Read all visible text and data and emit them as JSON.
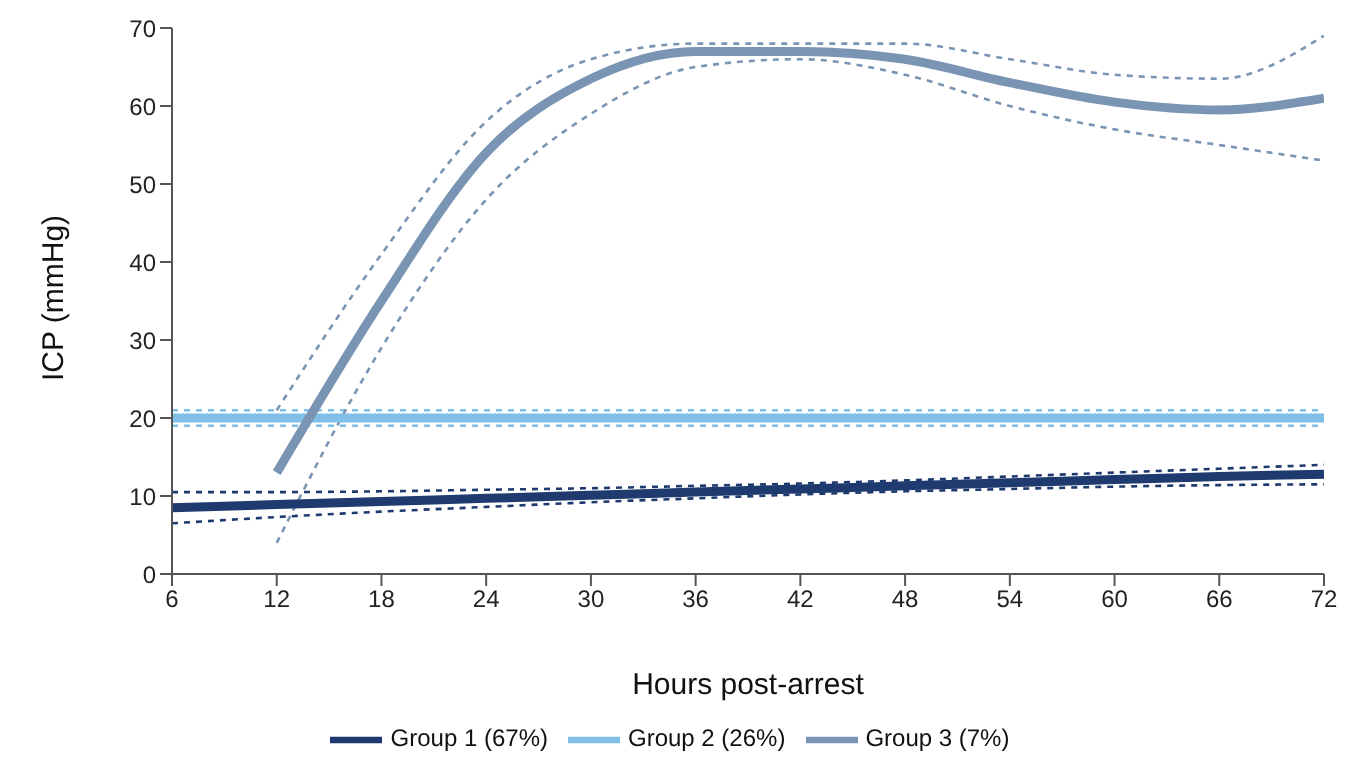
{
  "chart_data": {
    "type": "line",
    "xlabel": "Hours post-arrest",
    "ylabel": "ICP (mmHg)",
    "xlim": [
      6,
      72
    ],
    "xticks": [
      6,
      12,
      18,
      24,
      30,
      36,
      42,
      48,
      54,
      60,
      66,
      72
    ],
    "ylim": [
      0,
      70
    ],
    "yticks": [
      0,
      10,
      20,
      30,
      40,
      50,
      60,
      70
    ],
    "grid": false,
    "legend": "bottom",
    "marker": "none",
    "line_style": "solid",
    "series": [
      {
        "color": "#1f3a6e",
        "line_style": "dashed",
        "x": [
          6,
          12,
          18,
          24,
          30,
          36,
          42,
          48,
          54,
          60,
          66,
          72
        ],
        "values": [
          6.5,
          7.3,
          8,
          8.6,
          9.2,
          9.7,
          10.2,
          10.6,
          10.9,
          11.2,
          11.4,
          11.5
        ]
      },
      {
        "color": "#1f3a6e",
        "line_style": "dashed",
        "x": [
          6,
          12,
          18,
          24,
          30,
          36,
          42,
          48,
          54,
          60,
          66,
          72
        ],
        "values": [
          10.5,
          10.5,
          10.6,
          10.8,
          11,
          11.3,
          11.6,
          12,
          12.5,
          13,
          13.5,
          14
        ]
      },
      {
        "color": "#7fbfe8",
        "line_style": "dashed",
        "x": [
          6,
          72
        ],
        "values": [
          19,
          19
        ]
      },
      {
        "color": "#7fbfe8",
        "line_style": "dashed",
        "x": [
          6,
          72
        ],
        "values": [
          21,
          21
        ]
      },
      {
        "color": "#7a94b3",
        "line_style": "dashed",
        "x": [
          12,
          18,
          24,
          30,
          36,
          42,
          48,
          54,
          60,
          66,
          72
        ],
        "values": [
          4,
          29,
          48,
          59,
          65,
          66,
          64,
          60,
          57,
          55,
          53
        ]
      },
      {
        "color": "#7a94b3",
        "line_style": "dashed",
        "x": [
          12,
          18,
          24,
          30,
          36,
          42,
          48,
          54,
          60,
          66,
          72
        ],
        "values": [
          21,
          41,
          58,
          66,
          68,
          68,
          68,
          66,
          64,
          63.5,
          69
        ]
      },
      {
        "name": "Group 1 (67%)",
        "color": "#1f3a6e",
        "x": [
          6,
          12,
          18,
          24,
          30,
          36,
          42,
          48,
          54,
          60,
          66,
          72
        ],
        "values": [
          8.5,
          8.9,
          9.3,
          9.7,
          10.1,
          10.5,
          10.9,
          11.3,
          11.7,
          12.1,
          12.5,
          12.8
        ]
      },
      {
        "name": "Group 2 (26%)",
        "color": "#7fbfe8",
        "x": [
          6,
          72
        ],
        "values": [
          20,
          20
        ]
      },
      {
        "name": "Group 3 (7%)",
        "color": "#7a94b3",
        "x": [
          12,
          18,
          24,
          30,
          36,
          42,
          48,
          54,
          60,
          66,
          72
        ],
        "values": [
          13,
          35,
          54,
          63.5,
          67,
          67,
          66,
          63,
          60.5,
          59.5,
          61
        ]
      }
    ]
  }
}
